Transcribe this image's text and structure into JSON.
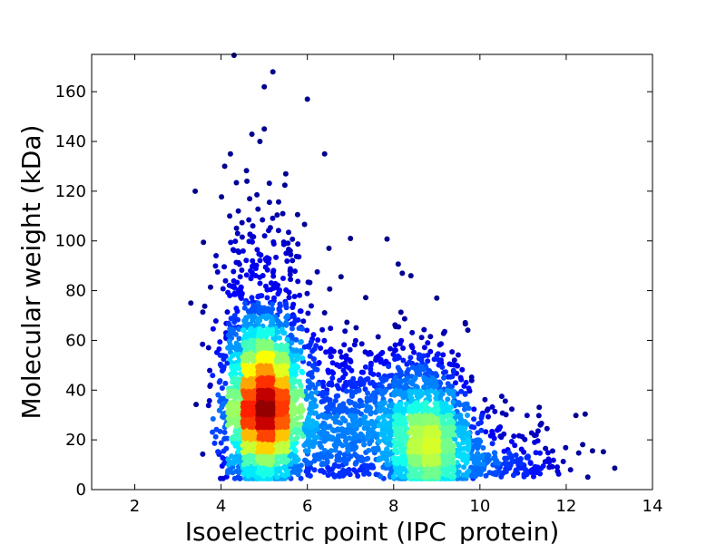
{
  "chart_data": {
    "type": "scatter",
    "title": "",
    "xlabel": "Isoelectric point (IPC_protein)",
    "ylabel": "Molecular weight (kDa)",
    "xlim": [
      1,
      14
    ],
    "ylim": [
      0,
      175
    ],
    "xticks": [
      2,
      4,
      6,
      8,
      10,
      12,
      14
    ],
    "yticks": [
      0,
      20,
      40,
      60,
      80,
      100,
      120,
      140,
      160
    ],
    "grid": false,
    "legend": "none",
    "color_scale": "jet (point density: low = dark blue, high = dark red)",
    "clusters": [
      {
        "center_x": 5.0,
        "center_y": 28,
        "density": "highest",
        "peak_color": "#b30000"
      },
      {
        "center_x": 8.8,
        "center_y": 20,
        "density": "moderate",
        "peak_color": "#22bbee"
      }
    ],
    "outliers": [
      {
        "x": 4.3,
        "y": 175
      },
      {
        "x": 5.2,
        "y": 168
      },
      {
        "x": 5.0,
        "y": 162
      },
      {
        "x": 6.0,
        "y": 157
      },
      {
        "x": 5.0,
        "y": 145
      },
      {
        "x": 4.9,
        "y": 140
      },
      {
        "x": 6.4,
        "y": 135
      },
      {
        "x": 3.4,
        "y": 120
      },
      {
        "x": 3.3,
        "y": 75
      },
      {
        "x": 4.6,
        "y": 124
      },
      {
        "x": 5.5,
        "y": 127
      },
      {
        "x": 7.0,
        "y": 101
      },
      {
        "x": 6.5,
        "y": 97
      },
      {
        "x": 8.2,
        "y": 87
      },
      {
        "x": 8.4,
        "y": 86
      },
      {
        "x": 9.0,
        "y": 77
      },
      {
        "x": 11.4,
        "y": 26
      },
      {
        "x": 12.5,
        "y": 5
      },
      {
        "x": 12.1,
        "y": 8
      },
      {
        "x": 4.2,
        "y": 110
      },
      {
        "x": 4.4,
        "y": 112
      }
    ]
  }
}
